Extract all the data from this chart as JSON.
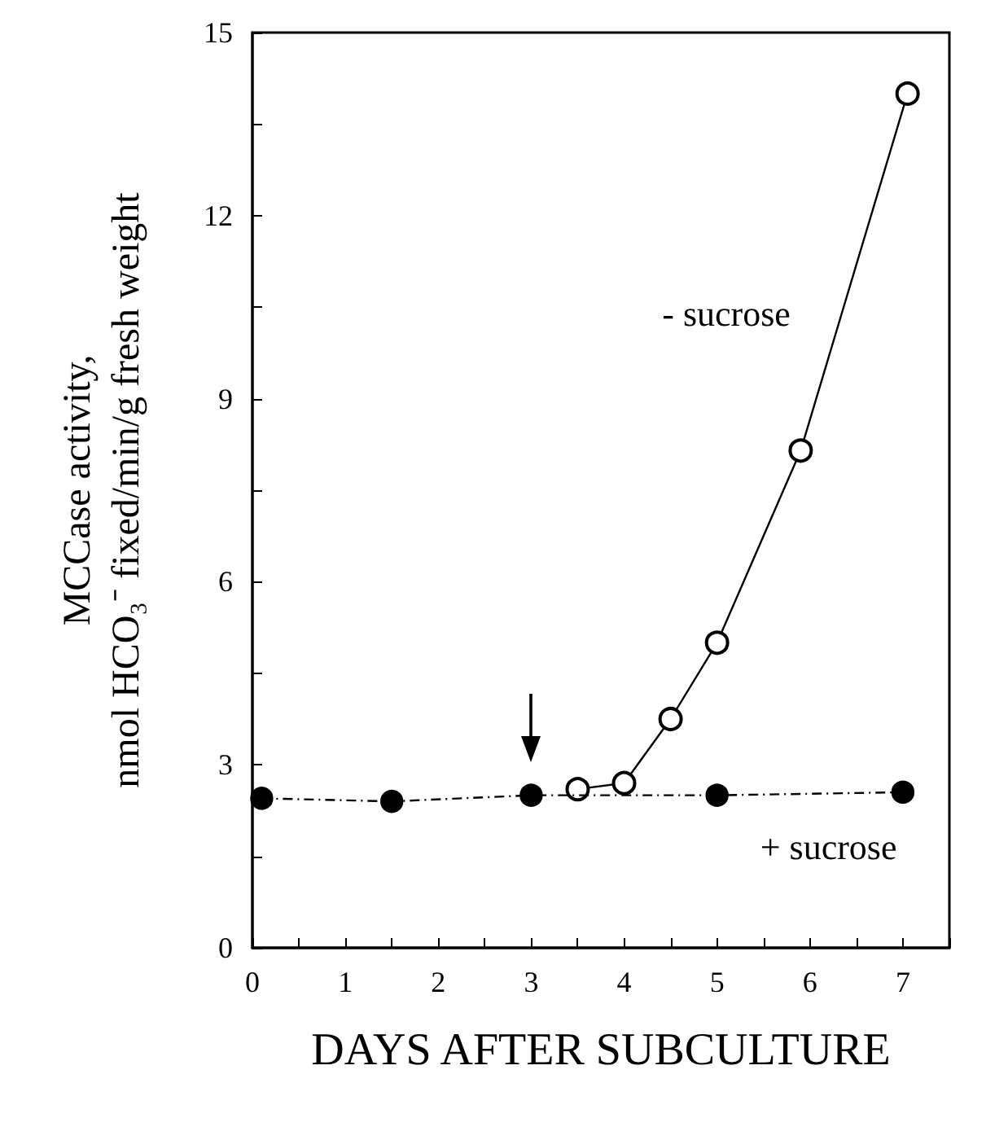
{
  "chart_data": {
    "type": "line",
    "xlabel": "DAYS AFTER SUBCULTURE",
    "ylabel": "MCCase activity,\nnmol HCO₃⁻ fixed/min/g fresh weight",
    "series": [
      {
        "name": "- sucrose",
        "color": "#000000",
        "line_style": "solid",
        "x": [
          3.5,
          4,
          4.5,
          5,
          5.9,
          7.05
        ],
        "values": [
          2.6,
          2.7,
          3.75,
          5.0,
          8.15,
          14.0
        ]
      },
      {
        "name": "+ sucrose",
        "color": "#000000",
        "line_style": "dashed",
        "x": [
          0.1,
          1.5,
          3,
          5,
          7
        ],
        "values": [
          2.45,
          2.4,
          2.5,
          2.5,
          2.55
        ]
      }
    ],
    "marker": "circle",
    "xlim": [
      0,
      7.5
    ],
    "xticks": [
      0,
      {
        "value": 0.5,
        "label": null
      },
      1,
      {
        "value": 1.5,
        "label": null
      },
      2,
      {
        "value": 2.5,
        "label": null
      },
      3,
      {
        "value": 3.5,
        "label": null
      },
      4,
      {
        "value": 4.5,
        "label": null
      },
      5,
      {
        "value": 5.5,
        "label": null
      },
      6,
      {
        "value": 6.5,
        "label": null
      },
      7,
      {
        "value": 7.5,
        "label": null
      }
    ],
    "ylim": [
      0,
      15
    ],
    "yticks": [
      0,
      {
        "value": 1.5,
        "label": null
      },
      3,
      {
        "value": 4.5,
        "label": null
      },
      6,
      {
        "value": 7.5,
        "label": null
      },
      9,
      {
        "value": 10.5,
        "label": null
      },
      12,
      {
        "value": 13.5,
        "label": null
      },
      15
    ],
    "grid": false,
    "legend": false
  }
}
